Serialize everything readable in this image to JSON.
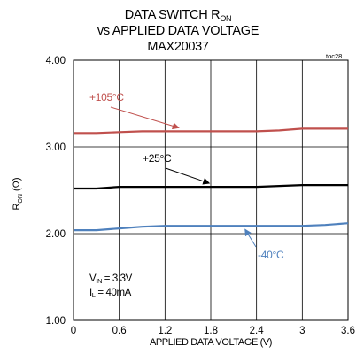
{
  "chart_data": {
    "type": "line",
    "title": {
      "line1_prefix": "DATA SWITCH R",
      "line1_sub": "ON",
      "line2": "vs APPLIED DATA VOLTAGE",
      "line3": "MAX20037"
    },
    "toc": "toc28",
    "xlabel": "APPLIED DATA VOLTAGE (V)",
    "ylabel_main": "R",
    "ylabel_sub": "ON",
    "ylabel_unit": " (Ω)",
    "xlim": [
      0,
      3.6
    ],
    "ylim": [
      1.0,
      4.0
    ],
    "xticks": [
      "0",
      "0.6",
      "1.2",
      "1.8",
      "2.4",
      "3",
      "3.6"
    ],
    "yticks": [
      "1.00",
      "2.00",
      "3.00",
      "4.00"
    ],
    "grid": true,
    "series": [
      {
        "name": "+105°C",
        "color": "#c0504d",
        "x": [
          0,
          0.3,
          0.6,
          0.9,
          1.2,
          1.5,
          1.8,
          2.1,
          2.4,
          2.7,
          3.0,
          3.3,
          3.6
        ],
        "y": [
          3.16,
          3.16,
          3.17,
          3.18,
          3.18,
          3.18,
          3.18,
          3.18,
          3.18,
          3.19,
          3.21,
          3.21,
          3.21
        ]
      },
      {
        "name": "+25°C",
        "color": "#000000",
        "x": [
          0,
          0.3,
          0.6,
          0.9,
          1.2,
          1.5,
          1.8,
          2.1,
          2.4,
          2.7,
          3.0,
          3.3,
          3.6
        ],
        "y": [
          2.52,
          2.52,
          2.54,
          2.54,
          2.54,
          2.54,
          2.54,
          2.54,
          2.54,
          2.55,
          2.56,
          2.56,
          2.56
        ]
      },
      {
        "name": "-40°C",
        "color": "#4f81bd",
        "x": [
          0,
          0.3,
          0.6,
          0.9,
          1.2,
          1.5,
          1.8,
          2.1,
          2.4,
          2.7,
          3.0,
          3.3,
          3.6
        ],
        "y": [
          2.04,
          2.04,
          2.06,
          2.08,
          2.09,
          2.09,
          2.09,
          2.09,
          2.09,
          2.09,
          2.09,
          2.1,
          2.12
        ]
      }
    ],
    "annotations": [
      {
        "text": "+105°C",
        "series": 0,
        "arrow_x": 1.38
      },
      {
        "text": "+25°C",
        "series": 1,
        "arrow_x": 1.78
      },
      {
        "text": "-40°C",
        "series": 2,
        "arrow_x": 2.25
      }
    ],
    "conditions": {
      "vin_prefix": "V",
      "vin_sub": "IN",
      "vin_value": " = 3.3V",
      "il_prefix": "I",
      "il_sub": "L",
      "il_value": " = 40mA"
    }
  }
}
